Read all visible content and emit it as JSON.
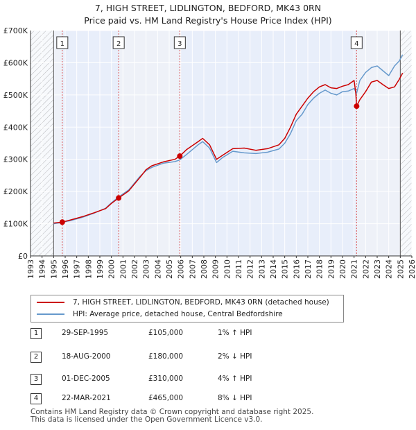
{
  "title_line1": "7, HIGH STREET, LIDLINGTON, BEDFORD, MK43 0RN",
  "title_line2": "Price paid vs. HM Land Registry's House Price Index (HPI)",
  "legend": {
    "property_label": "7, HIGH STREET, LIDLINGTON, BEDFORD, MK43 0RN (detached house)",
    "hpi_label": "HPI: Average price, detached house, Central Bedfordshire"
  },
  "colors": {
    "property_line": "#cc0000",
    "hpi_line": "#6699cc",
    "shade": "#e8eefa",
    "hatch": "#888888",
    "grid": "#ffffff",
    "marker_line": "#dd5555"
  },
  "sales": [
    {
      "num": "1",
      "date": "29-SEP-1995",
      "price": "£105,000",
      "hpi": "1% ↑ HPI",
      "year": 1995.75,
      "value": 105000
    },
    {
      "num": "2",
      "date": "18-AUG-2000",
      "price": "£180,000",
      "hpi": "2% ↓ HPI",
      "year": 2000.63,
      "value": 180000
    },
    {
      "num": "3",
      "date": "01-DEC-2005",
      "price": "£310,000",
      "hpi": "4% ↑ HPI",
      "year": 2005.92,
      "value": 310000
    },
    {
      "num": "4",
      "date": "22-MAR-2021",
      "price": "£465,000",
      "hpi": "8% ↓ HPI",
      "year": 2021.22,
      "value": 465000
    }
  ],
  "footer": {
    "line1": "Contains HM Land Registry data © Crown copyright and database right 2025.",
    "line2": "This data is licensed under the Open Government Licence v3.0."
  },
  "chart_data": {
    "type": "line",
    "xlim": [
      1993,
      2026
    ],
    "ylim": [
      0,
      700000
    ],
    "x_ticks": [
      "1993",
      "1994",
      "1995",
      "1996",
      "1997",
      "1998",
      "1999",
      "2000",
      "2001",
      "2002",
      "2003",
      "2004",
      "2005",
      "2006",
      "2007",
      "2008",
      "2009",
      "2010",
      "2011",
      "2012",
      "2013",
      "2014",
      "2015",
      "2016",
      "2017",
      "2018",
      "2019",
      "2020",
      "2021",
      "2022",
      "2023",
      "2024",
      "2025",
      "2026"
    ],
    "y_ticks": [
      {
        "value": 0,
        "label": "£0"
      },
      {
        "value": 100000,
        "label": "£100K"
      },
      {
        "value": 200000,
        "label": "£200K"
      },
      {
        "value": 300000,
        "label": "£300K"
      },
      {
        "value": 400000,
        "label": "£400K"
      },
      {
        "value": 500000,
        "label": "£500K"
      },
      {
        "value": 600000,
        "label": "£600K"
      },
      {
        "value": 700000,
        "label": "£700K"
      }
    ],
    "hatched_ranges": [
      [
        1993,
        1995.0
      ],
      [
        2025.0,
        2026
      ]
    ],
    "shaded_ranges": [
      [
        1995.75,
        2000.63
      ],
      [
        2005.92,
        2021.22
      ]
    ],
    "series": [
      {
        "name": "HPI: Average price, detached house, Central Bedfordshire",
        "x": [
          1995.0,
          1995.75,
          1996.5,
          1997.5,
          1998.5,
          1999.5,
          2000.0,
          2000.63,
          2001.5,
          2002.5,
          2003.0,
          2003.5,
          2004.5,
          2005.5,
          2005.92,
          2006.5,
          2007.5,
          2007.9,
          2008.5,
          2009.1,
          2009.6,
          2010.5,
          2011.5,
          2012.5,
          2013.5,
          2014.5,
          2015.0,
          2015.5,
          2016.0,
          2016.5,
          2017.0,
          2017.5,
          2018.0,
          2018.5,
          2019.0,
          2019.5,
          2020.0,
          2020.5,
          2021.0,
          2021.22,
          2021.5,
          2022.0,
          2022.5,
          2023.0,
          2023.5,
          2024.0,
          2024.5,
          2024.9,
          2025.2
        ],
        "y": [
          100000,
          104000,
          110000,
          120000,
          133000,
          148000,
          165000,
          183000,
          205000,
          248000,
          265000,
          275000,
          288000,
          293000,
          298000,
          315000,
          345000,
          355000,
          335000,
          290000,
          305000,
          325000,
          320000,
          318000,
          322000,
          332000,
          350000,
          380000,
          420000,
          440000,
          470000,
          490000,
          505000,
          515000,
          505000,
          500000,
          510000,
          512000,
          520000,
          505000,
          545000,
          570000,
          585000,
          590000,
          575000,
          560000,
          590000,
          605000,
          625000
        ]
      },
      {
        "name": "7, HIGH STREET, LIDLINGTON, BEDFORD, MK43 0RN (detached house)",
        "x": [
          1995.0,
          1995.75,
          1996.5,
          1997.5,
          1998.5,
          1999.5,
          2000.0,
          2000.63,
          2001.5,
          2002.5,
          2003.0,
          2003.5,
          2004.5,
          2005.5,
          2005.92,
          2006.5,
          2007.5,
          2007.9,
          2008.5,
          2009.1,
          2009.6,
          2010.5,
          2011.5,
          2012.5,
          2013.5,
          2014.5,
          2015.0,
          2015.5,
          2016.0,
          2016.5,
          2017.0,
          2017.5,
          2018.0,
          2018.5,
          2019.0,
          2019.5,
          2020.0,
          2020.5,
          2021.0,
          2021.15,
          2021.22,
          2021.5,
          2022.0,
          2022.5,
          2023.0,
          2023.5,
          2024.0,
          2024.5,
          2024.9,
          2025.2
        ],
        "y": [
          102000,
          105000,
          112000,
          122000,
          134000,
          147000,
          163000,
          180000,
          202000,
          245000,
          268000,
          280000,
          292000,
          300000,
          310000,
          330000,
          355000,
          365000,
          345000,
          300000,
          312000,
          333000,
          335000,
          328000,
          333000,
          345000,
          365000,
          400000,
          440000,
          465000,
          490000,
          510000,
          525000,
          532000,
          522000,
          520000,
          527000,
          532000,
          545000,
          505000,
          465000,
          485000,
          510000,
          540000,
          545000,
          532000,
          520000,
          525000,
          548000,
          568000
        ]
      }
    ]
  }
}
